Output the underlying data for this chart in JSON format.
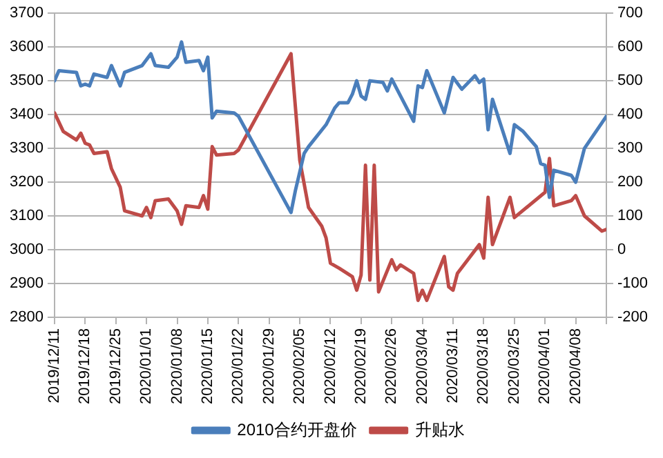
{
  "chart_data": {
    "type": "line",
    "legend": "bottom",
    "grid": "y",
    "marker": "none",
    "line_style": "solid",
    "xlim": [
      "2019-12-11",
      "2020-04-15"
    ],
    "xticks": [
      {
        "value": "2019-12-11",
        "label": "2019/12/11"
      },
      {
        "value": "2019-12-18",
        "label": "2019/12/18"
      },
      {
        "value": "2019-12-25",
        "label": "2019/12/25"
      },
      {
        "value": "2020-01-01",
        "label": "2020/01/01"
      },
      {
        "value": "2020-01-08",
        "label": "2020/01/08"
      },
      {
        "value": "2020-01-15",
        "label": "2020/01/15"
      },
      {
        "value": "2020-01-22",
        "label": "2020/01/22"
      },
      {
        "value": "2020-01-29",
        "label": "2020/01/29"
      },
      {
        "value": "2020-02-05",
        "label": "2020/02/05"
      },
      {
        "value": "2020-02-12",
        "label": "2020/02/12"
      },
      {
        "value": "2020-02-19",
        "label": "2020/02/19"
      },
      {
        "value": "2020-02-26",
        "label": "2020/02/26"
      },
      {
        "value": "2020-03-04",
        "label": "2020/03/04"
      },
      {
        "value": "2020-03-11",
        "label": "2020/03/11"
      },
      {
        "value": "2020-03-18",
        "label": "2020/03/18"
      },
      {
        "value": "2020-03-25",
        "label": "2020/03/25"
      },
      {
        "value": "2020-04-01",
        "label": "2020/04/01"
      },
      {
        "value": "2020-04-08",
        "label": "2020/04/08"
      },
      {
        "value": "2020-04-15",
        "label": null
      }
    ],
    "ylim": [
      2800,
      3700
    ],
    "yticks": [
      2800,
      2900,
      3000,
      3100,
      3200,
      3300,
      3400,
      3500,
      3600,
      3700
    ],
    "y2lim": [
      -200,
      700
    ],
    "y2ticks": [
      -200,
      -100,
      0,
      100,
      200,
      300,
      400,
      500,
      600,
      700
    ],
    "series": [
      {
        "name": "2010合约开盘价",
        "color": "#4a7ebb",
        "x": [
          "2019-12-11",
          "2019-12-12",
          "2019-12-16",
          "2019-12-17",
          "2019-12-18",
          "2019-12-19",
          "2019-12-20",
          "2019-12-23",
          "2019-12-24",
          "2019-12-26",
          "2019-12-27",
          "2019-12-31",
          "2020-01-02",
          "2020-01-03",
          "2020-01-06",
          "2020-01-08",
          "2020-01-09",
          "2020-01-10",
          "2020-01-13",
          "2020-01-14",
          "2020-01-15",
          "2020-01-16",
          "2020-01-17",
          "2020-01-21",
          "2020-01-22",
          "2020-02-03",
          "2020-02-04",
          "2020-02-06",
          "2020-02-07",
          "2020-02-11",
          "2020-02-13",
          "2020-02-14",
          "2020-02-16",
          "2020-02-17",
          "2020-02-18",
          "2020-02-19",
          "2020-02-20",
          "2020-02-21",
          "2020-02-24",
          "2020-02-25",
          "2020-02-26",
          "2020-03-02",
          "2020-03-03",
          "2020-03-04",
          "2020-03-05",
          "2020-03-09",
          "2020-03-11",
          "2020-03-13",
          "2020-03-16",
          "2020-03-17",
          "2020-03-18",
          "2020-03-19",
          "2020-03-20",
          "2020-03-24",
          "2020-03-25",
          "2020-03-27",
          "2020-03-30",
          "2020-03-31",
          "2020-04-01",
          "2020-04-02",
          "2020-04-03",
          "2020-04-07",
          "2020-04-08",
          "2020-04-10",
          "2020-04-15"
        ],
        "values": [
          3500,
          3530,
          3525,
          3485,
          3490,
          3485,
          3520,
          3510,
          3545,
          3485,
          3525,
          3545,
          3580,
          3545,
          3540,
          3570,
          3615,
          3555,
          3560,
          3530,
          3570,
          3390,
          3410,
          3405,
          3395,
          3110,
          3175,
          3285,
          3305,
          3370,
          3420,
          3435,
          3435,
          3460,
          3500,
          3455,
          3445,
          3500,
          3495,
          3470,
          3505,
          3380,
          3485,
          3480,
          3530,
          3405,
          3510,
          3475,
          3515,
          3495,
          3505,
          3355,
          3445,
          3285,
          3370,
          3350,
          3305,
          3255,
          3250,
          3155,
          3235,
          3220,
          3200,
          3300,
          3395
        ]
      },
      {
        "name": "升贴水",
        "color": "#be4b48",
        "x": [
          "2019-12-11",
          "2019-12-13",
          "2019-12-16",
          "2019-12-17",
          "2019-12-18",
          "2019-12-19",
          "2019-12-20",
          "2019-12-23",
          "2019-12-24",
          "2019-12-26",
          "2019-12-27",
          "2019-12-31",
          "2020-01-01",
          "2020-01-02",
          "2020-01-03",
          "2020-01-06",
          "2020-01-08",
          "2020-01-09",
          "2020-01-10",
          "2020-01-13",
          "2020-01-14",
          "2020-01-15",
          "2020-01-16",
          "2020-01-17",
          "2020-01-21",
          "2020-01-22",
          "2020-02-03",
          "2020-02-05",
          "2020-02-07",
          "2020-02-10",
          "2020-02-11",
          "2020-02-12",
          "2020-02-14",
          "2020-02-17",
          "2020-02-18",
          "2020-02-19",
          "2020-02-20",
          "2020-02-21",
          "2020-02-22",
          "2020-02-23",
          "2020-02-26",
          "2020-02-27",
          "2020-02-28",
          "2020-03-02",
          "2020-03-03",
          "2020-03-04",
          "2020-03-05",
          "2020-03-09",
          "2020-03-10",
          "2020-03-11",
          "2020-03-12",
          "2020-03-17",
          "2020-03-18",
          "2020-03-19",
          "2020-03-20",
          "2020-03-24",
          "2020-03-25",
          "2020-04-01",
          "2020-04-02",
          "2020-04-03",
          "2020-04-07",
          "2020-04-08",
          "2020-04-10",
          "2020-04-14",
          "2020-04-15"
        ],
        "axis": "y2",
        "values": [
          405,
          350,
          325,
          345,
          315,
          310,
          285,
          290,
          240,
          185,
          115,
          100,
          125,
          95,
          145,
          150,
          115,
          75,
          130,
          125,
          160,
          120,
          305,
          280,
          285,
          295,
          580,
          265,
          125,
          70,
          35,
          -40,
          -55,
          -80,
          -120,
          -75,
          250,
          -90,
          250,
          -125,
          -30,
          -60,
          -45,
          -70,
          -150,
          -120,
          -150,
          -20,
          -110,
          -120,
          -70,
          15,
          -25,
          155,
          15,
          155,
          95,
          170,
          270,
          130,
          145,
          160,
          100,
          55,
          60
        ]
      }
    ]
  }
}
